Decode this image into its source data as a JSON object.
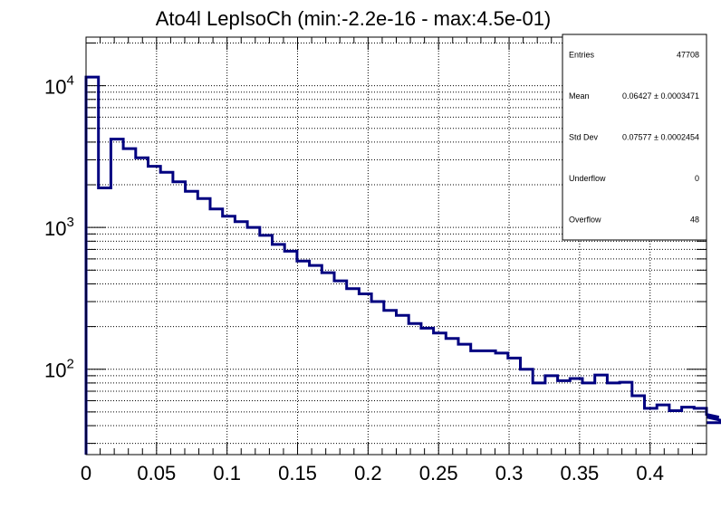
{
  "chart_data": {
    "type": "histogram",
    "title": "Ato4l LepIsoCh (min:-2.2e-16 - max:4.5e-01)",
    "xlabel": "",
    "ylabel": "",
    "y_scale": "log",
    "xlim": [
      0,
      0.44
    ],
    "ylim": [
      25,
      22000
    ],
    "grid": true,
    "line_color": "#000080",
    "bin_width": 0.0088,
    "bin_edges_start": 0,
    "values": [
      11500,
      1900,
      4200,
      3600,
      3100,
      2700,
      2450,
      2100,
      1800,
      1600,
      1350,
      1200,
      1100,
      1000,
      880,
      760,
      680,
      580,
      540,
      480,
      420,
      370,
      340,
      300,
      260,
      240,
      210,
      195,
      180,
      165,
      150,
      135,
      135,
      130,
      120,
      100,
      80,
      90,
      83,
      86,
      80,
      91,
      80,
      81,
      65,
      53,
      56,
      51,
      54,
      53,
      48,
      46,
      42
    ],
    "x_ticks": [
      {
        "value": 0,
        "label": "0"
      },
      {
        "value": 0.05,
        "label": "0.05"
      },
      {
        "value": 0.1,
        "label": "0.1"
      },
      {
        "value": 0.15,
        "label": "0.15"
      },
      {
        "value": 0.2,
        "label": "0.2"
      },
      {
        "value": 0.25,
        "label": "0.25"
      },
      {
        "value": 0.3,
        "label": "0.3"
      },
      {
        "value": 0.35,
        "label": "0.35"
      },
      {
        "value": 0.4,
        "label": "0.4"
      }
    ],
    "y_major_ticks": [
      {
        "value": 100,
        "base": "10",
        "exp": "2"
      },
      {
        "value": 1000,
        "base": "10",
        "exp": "3"
      },
      {
        "value": 10000,
        "base": "10",
        "exp": "4"
      }
    ],
    "stats": [
      {
        "label": "Entries",
        "value": "47708"
      },
      {
        "label": "Mean",
        "value": "0.06427 ± 0.0003471"
      },
      {
        "label": "Std Dev",
        "value": "0.07577 ± 0.0002454"
      },
      {
        "label": "Underflow",
        "value": "0"
      },
      {
        "label": "Overflow",
        "value": "48"
      }
    ]
  }
}
